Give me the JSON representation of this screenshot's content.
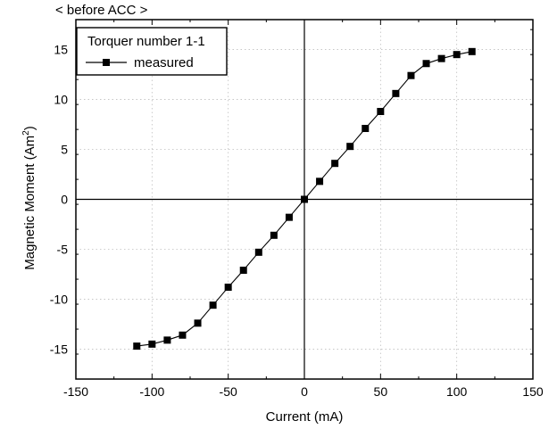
{
  "chart_data": {
    "type": "line",
    "title": "< before ACC >",
    "xlabel": "Current (mA)",
    "ylabel": "Magnetic Moment (Am",
    "ylabel_sup": "2",
    "ylabel_close": ")",
    "xlim": [
      -150,
      150
    ],
    "ylim": [
      -18,
      18
    ],
    "xticks": [
      -150,
      -100,
      -50,
      0,
      50,
      100,
      150
    ],
    "yticks": [
      -15,
      -10,
      -5,
      0,
      5,
      10,
      15
    ],
    "grid": true,
    "legend": {
      "title": "Torquer number 1-1",
      "placement": "top-left"
    },
    "series": [
      {
        "name": "measured",
        "marker": "square",
        "color": "#000000",
        "x": [
          -110,
          -100,
          -90,
          -80,
          -70,
          -60,
          -50,
          -40,
          -30,
          -20,
          -10,
          0,
          10,
          20,
          30,
          40,
          50,
          60,
          70,
          80,
          90,
          100,
          110
        ],
        "y": [
          -14.7,
          -14.5,
          -14.1,
          -13.6,
          -12.4,
          -10.6,
          -8.8,
          -7.1,
          -5.3,
          -3.6,
          -1.8,
          0,
          1.8,
          3.6,
          5.3,
          7.1,
          8.8,
          10.6,
          12.4,
          13.6,
          14.1,
          14.5,
          14.8
        ]
      }
    ]
  }
}
